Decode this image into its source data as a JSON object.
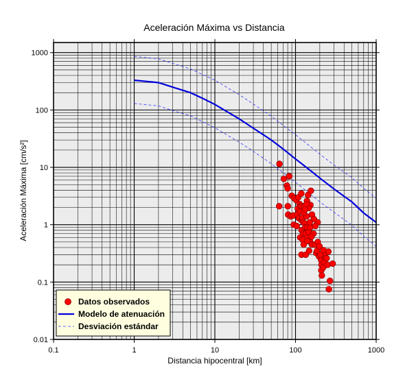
{
  "chart_data": {
    "type": "scatter",
    "title": "Aceleración Máxima vs Distancia",
    "xlabel": "Distancia hipocentral [km]",
    "ylabel": "Aceleración Máxima [cm/s²]",
    "xscale": "log",
    "yscale": "log",
    "xlim": [
      0.1,
      1000
    ],
    "ylim": [
      0.01,
      1500
    ],
    "x_ticks": [
      0.1,
      1,
      10,
      100,
      1000
    ],
    "x_tick_labels": [
      "0.1",
      "1",
      "10",
      "100",
      "1000"
    ],
    "y_ticks": [
      0.01,
      0.1,
      1,
      10,
      100,
      1000
    ],
    "y_tick_labels": [
      "0.01",
      "0.1",
      "1",
      "10",
      "100",
      "1000"
    ],
    "grid": true,
    "legend_position": "bottom-left",
    "colors": {
      "plot_background": "#ececec",
      "grid": "#000000",
      "points": "#ff0000",
      "point_edge": "#8b0000",
      "model": "#0000dd",
      "deviation": "#3333ff",
      "legend_background": "#ffffe0"
    },
    "series": [
      {
        "name": "Datos observados",
        "kind": "scatter",
        "points": [
          [
            63.2,
            11.5
          ],
          [
            62.7,
            2.1
          ],
          [
            71.8,
            6.3
          ],
          [
            78.1,
            4.8
          ],
          [
            80.0,
            4.3
          ],
          [
            83.5,
            7.0
          ],
          [
            80.3,
            2.1
          ],
          [
            81.1,
            1.5
          ],
          [
            87.6,
            1.4
          ],
          [
            89.7,
            3.2
          ],
          [
            94.4,
            1.45
          ],
          [
            95.1,
            1.0
          ],
          [
            96.1,
            2.9
          ],
          [
            101.5,
            2.7
          ],
          [
            103.6,
            0.95
          ],
          [
            105.5,
            1.5
          ],
          [
            106.7,
            1.9
          ],
          [
            108.1,
            3.0
          ],
          [
            110.0,
            1.3
          ],
          [
            112.0,
            2.3
          ],
          [
            113.7,
            1.7
          ],
          [
            114.2,
            0.6
          ],
          [
            115.0,
            2.1
          ],
          [
            118.0,
            3.5
          ],
          [
            119.0,
            0.8
          ],
          [
            118.5,
            1.2
          ],
          [
            118.5,
            0.3
          ],
          [
            120.2,
            2.1
          ],
          [
            121.2,
            1.3
          ],
          [
            122.6,
            0.55
          ],
          [
            124.7,
            1.1
          ],
          [
            124.5,
            0.7
          ],
          [
            126.3,
            0.45
          ],
          [
            128.5,
            2.1
          ],
          [
            130.0,
            1.05
          ],
          [
            132.4,
            0.9
          ],
          [
            134.0,
            0.3
          ],
          [
            133.6,
            0.7
          ],
          [
            137.0,
            1.4
          ],
          [
            138.7,
            2.6
          ],
          [
            139.0,
            0.9
          ],
          [
            141.0,
            0.6
          ],
          [
            143.0,
            3.3
          ],
          [
            147.4,
            0.35
          ],
          [
            145.2,
            0.75
          ],
          [
            152.7,
            0.5
          ],
          [
            152.2,
            0.9
          ],
          [
            153.1,
            2.2
          ],
          [
            155.0,
            3.9
          ],
          [
            160.0,
            1.5
          ],
          [
            160.0,
            0.45
          ],
          [
            167.1,
            0.7
          ],
          [
            174.0,
            0.45
          ],
          [
            181.0,
            0.32
          ],
          [
            184.5,
            0.35
          ],
          [
            188.7,
            0.5
          ],
          [
            195.6,
            0.28
          ],
          [
            203.3,
            0.3
          ],
          [
            208.9,
            0.16
          ],
          [
            208.4,
            0.24
          ],
          [
            210.1,
            0.2
          ],
          [
            211.9,
            0.13
          ],
          [
            220.3,
            0.18
          ],
          [
            229.7,
            0.22
          ],
          [
            235.6,
            0.27
          ],
          [
            235.8,
            0.32
          ],
          [
            250.4,
            0.2
          ],
          [
            255.7,
            0.34
          ],
          [
            259.2,
            0.075
          ],
          [
            267.5,
            0.105
          ],
          [
            289.3,
            0.21
          ],
          [
            188.0,
            1.1
          ],
          [
            176.0,
            0.95
          ],
          [
            169.0,
            1.25
          ],
          [
            146.0,
            1.95
          ],
          [
            136.0,
            2.25
          ],
          [
            127.0,
            1.6
          ],
          [
            131.0,
            1.85
          ],
          [
            150.0,
            1.1
          ],
          [
            158.0,
            0.62
          ],
          [
            140.0,
            0.52
          ],
          [
            198.0,
            0.42
          ],
          [
            222.0,
            0.36
          ],
          [
            243.0,
            0.26
          ]
        ]
      },
      {
        "name": "Modelo de atenuación",
        "kind": "line",
        "points": [
          [
            1,
            330
          ],
          [
            2,
            300
          ],
          [
            3,
            250
          ],
          [
            5,
            200
          ],
          [
            7,
            160
          ],
          [
            10,
            125
          ],
          [
            20,
            70
          ],
          [
            30,
            48
          ],
          [
            50,
            30
          ],
          [
            70,
            21
          ],
          [
            100,
            14
          ],
          [
            150,
            9
          ],
          [
            200,
            6.5
          ],
          [
            300,
            4.2
          ],
          [
            500,
            2.5
          ],
          [
            700,
            1.6
          ],
          [
            1000,
            1.1
          ]
        ]
      },
      {
        "name": "Desviación estándar",
        "kind": "dashed",
        "upper": [
          [
            1,
            860
          ],
          [
            2,
            780
          ],
          [
            3,
            650
          ],
          [
            5,
            520
          ],
          [
            10,
            330
          ],
          [
            20,
            185
          ],
          [
            30,
            127
          ],
          [
            50,
            78
          ],
          [
            100,
            37
          ],
          [
            200,
            17
          ],
          [
            300,
            11
          ],
          [
            500,
            6.6
          ],
          [
            700,
            4.3
          ],
          [
            1000,
            2.9
          ]
        ],
        "lower": [
          [
            1,
            130
          ],
          [
            2,
            118
          ],
          [
            3,
            98
          ],
          [
            5,
            79
          ],
          [
            10,
            49
          ],
          [
            20,
            27.5
          ],
          [
            30,
            19
          ],
          [
            50,
            11.6
          ],
          [
            100,
            5.5
          ],
          [
            200,
            2.5
          ],
          [
            300,
            1.65
          ],
          [
            500,
            0.98
          ],
          [
            700,
            0.63
          ],
          [
            1000,
            0.42
          ]
        ]
      }
    ]
  }
}
